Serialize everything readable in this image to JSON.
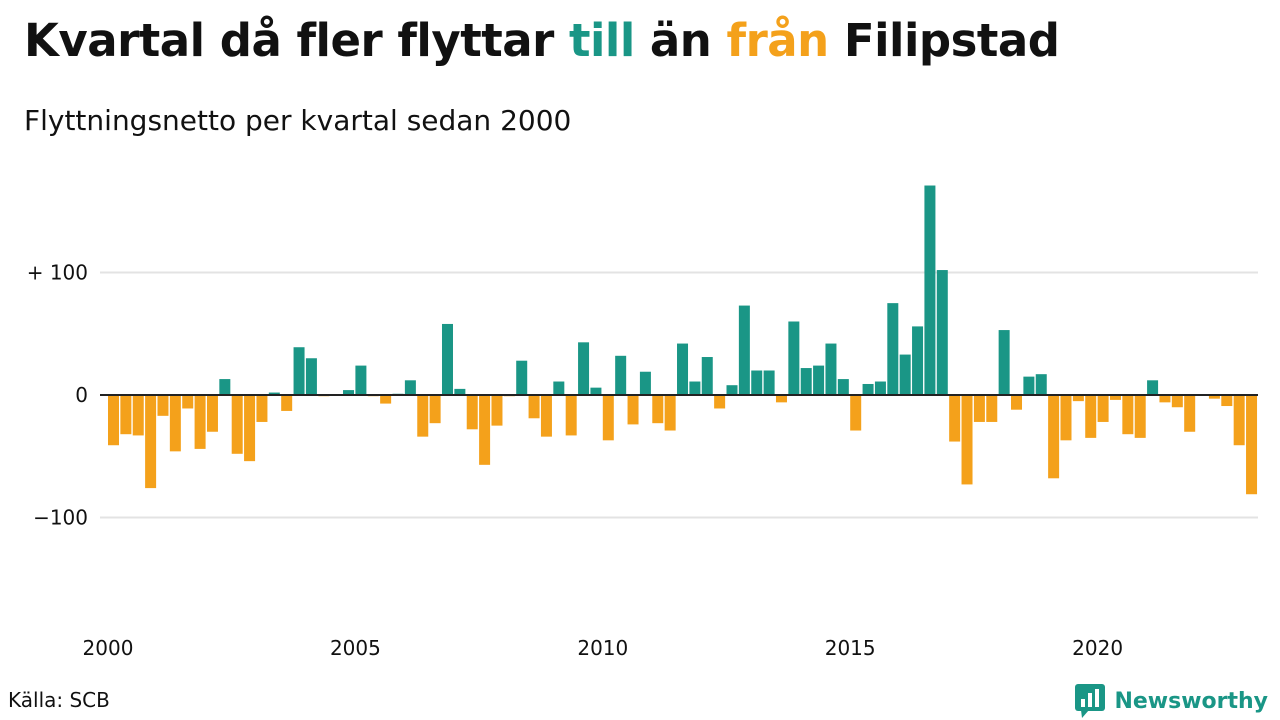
{
  "title": {
    "part1": "Kvartal då fler flyttar ",
    "highlight_in": "till",
    "part2": " än ",
    "highlight_out": "från",
    "part3": " Filipstad"
  },
  "subtitle": "Flyttningsnetto per kvartal sedan 2000",
  "source": "Källa: SCB",
  "brand": {
    "name": "Newsworthy",
    "icon": "bar-chart-speech-bubble-icon"
  },
  "colors": {
    "positive": "#1a9686",
    "negative": "#f4a11b",
    "grid": "#e3e3e3",
    "zero_line": "#222222"
  },
  "chart_data": {
    "type": "bar",
    "title": "Kvartal då fler flyttar till än från Filipstad",
    "subtitle": "Flyttningsnetto per kvartal sedan 2000",
    "xlabel": "",
    "ylabel": "",
    "ylim": [
      -175,
      175
    ],
    "yticks": [
      100,
      0,
      -100
    ],
    "ytick_labels": [
      "+ 100",
      "0",
      "−100"
    ],
    "xticks": [
      2000,
      2005,
      2010,
      2015,
      2020
    ],
    "xtick_labels": [
      "2000",
      "2005",
      "2010",
      "2015",
      "2020"
    ],
    "grid": true,
    "legend": "none",
    "start_year": 2000,
    "quarters_per_year": 4,
    "values": [
      -41,
      -32,
      -33,
      -76,
      -17,
      -46,
      -11,
      -44,
      -30,
      13,
      -48,
      -54,
      -22,
      2,
      -13,
      39,
      30,
      -1,
      0,
      4,
      24,
      -1,
      -7,
      1,
      12,
      -34,
      -23,
      58,
      5,
      -28,
      -57,
      -25,
      -1,
      28,
      -19,
      -34,
      11,
      -33,
      43,
      6,
      -37,
      32,
      -24,
      19,
      -23,
      -29,
      42,
      11,
      31,
      -11,
      8,
      73,
      20,
      20,
      -6,
      60,
      22,
      24,
      42,
      13,
      -29,
      9,
      11,
      75,
      33,
      56,
      171,
      102,
      -38,
      -73,
      -22,
      -22,
      53,
      -12,
      15,
      17,
      -68,
      -37,
      -5,
      -35,
      -22,
      -4,
      -32,
      -35,
      12,
      -6,
      -10,
      -30,
      0,
      -3,
      -9,
      -41,
      -81
    ]
  }
}
